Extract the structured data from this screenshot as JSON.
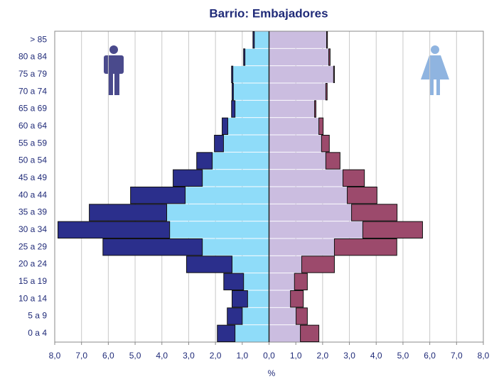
{
  "chart_data": {
    "type": "pyramid",
    "title": "Barrio: Embajadores",
    "x_label": "%",
    "categories": [
      "> 85",
      "80 a 84",
      "75 a 79",
      "70 a 74",
      "65 a 69",
      "60 a 64",
      "55 a 59",
      "50 a 54",
      "45 a 49",
      "40 a 44",
      "35 a 39",
      "30 a 34",
      "25 a 29",
      "20 a 24",
      "15 a 19",
      "10 a 14",
      "5 a 9",
      "0 a 4"
    ],
    "series": [
      {
        "side": "left",
        "color": "#8fdcf9",
        "values": [
          0.55,
          0.9,
          1.35,
          1.33,
          1.27,
          1.54,
          1.7,
          2.12,
          2.49,
          3.13,
          3.82,
          3.71,
          2.49,
          1.38,
          0.95,
          0.8,
          1.0,
          1.27
        ]
      },
      {
        "side": "left",
        "color": "#2b2f8c",
        "values": [
          0.05,
          0.05,
          0.05,
          0.05,
          0.13,
          0.21,
          0.34,
          0.58,
          1.09,
          2.04,
          2.89,
          4.17,
          3.71,
          1.7,
          0.74,
          0.58,
          0.56,
          0.66
        ]
      },
      {
        "side": "right",
        "color": "#cbbde0",
        "values": [
          2.15,
          2.23,
          2.41,
          2.12,
          1.7,
          1.86,
          1.96,
          2.12,
          2.76,
          2.92,
          3.08,
          3.5,
          2.44,
          1.22,
          0.95,
          0.8,
          1.01,
          1.17
        ]
      },
      {
        "side": "right",
        "color": "#9c4a6c",
        "values": [
          0.03,
          0.05,
          0.03,
          0.05,
          0.05,
          0.16,
          0.29,
          0.53,
          0.8,
          1.11,
          1.7,
          2.23,
          2.33,
          1.22,
          0.48,
          0.48,
          0.42,
          0.69
        ]
      }
    ],
    "xlim": [
      -8,
      8
    ],
    "xticks": [
      {
        "value": -8,
        "label": "8,0"
      },
      {
        "value": -7,
        "label": "7,0"
      },
      {
        "value": -6,
        "label": "6,0"
      },
      {
        "value": -5,
        "label": "5,0"
      },
      {
        "value": -4,
        "label": "4,0"
      },
      {
        "value": -3,
        "label": "3,0"
      },
      {
        "value": -2,
        "label": "2,0"
      },
      {
        "value": -1,
        "label": "1,0"
      },
      {
        "value": 0,
        "label": "0,0"
      },
      {
        "value": 1,
        "label": "1,0"
      },
      {
        "value": 2,
        "label": "2,0"
      },
      {
        "value": 3,
        "label": "3,0"
      },
      {
        "value": 4,
        "label": "4,0"
      },
      {
        "value": 5,
        "label": "5,0"
      },
      {
        "value": 6,
        "label": "6,0"
      },
      {
        "value": 7,
        "label": "7,0"
      },
      {
        "value": 8,
        "label": "8,0"
      }
    ],
    "grid": true
  }
}
